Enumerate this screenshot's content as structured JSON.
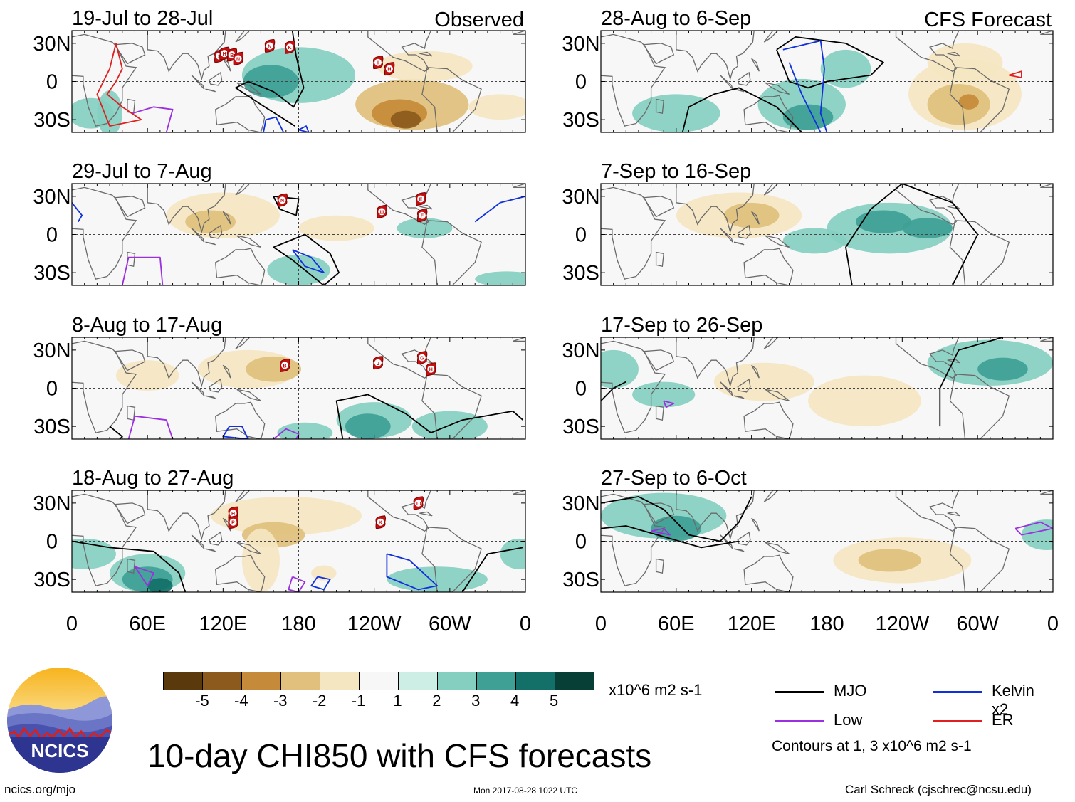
{
  "title": "10-day CHI850 with CFS forecasts",
  "footer": {
    "site": "ncics.org/mjo",
    "timestamp": "Mon 2017-08-28 1022 UTC",
    "credit": "Carl Schreck (cjschrec@ncsu.edu)"
  },
  "logo": {
    "text": "NCICS"
  },
  "column_headers": {
    "left": "Observed",
    "right": "CFS Forecast"
  },
  "lat_labels": [
    "30N",
    "0",
    "30S"
  ],
  "lon_labels": [
    "0",
    "60E",
    "120E",
    "180",
    "120W",
    "60W",
    "0"
  ],
  "panels_left": [
    {
      "date": "19-Jul to 28-Jul"
    },
    {
      "date": "29-Jul to 7-Aug"
    },
    {
      "date": "8-Aug to 17-Aug"
    },
    {
      "date": "18-Aug to 27-Aug"
    }
  ],
  "panels_right": [
    {
      "date": "28-Aug to 6-Sep"
    },
    {
      "date": "7-Sep to 16-Sep"
    },
    {
      "date": "17-Sep to 26-Sep"
    },
    {
      "date": "27-Sep to 6-Oct"
    }
  ],
  "storm_markers": [
    {
      "panel": "left-0",
      "lon": 117,
      "lat": 20,
      "label": "S"
    },
    {
      "panel": "left-0",
      "lon": 121,
      "lat": 22,
      "label": "H"
    },
    {
      "panel": "left-0",
      "lon": 127,
      "lat": 21,
      "label": "B"
    },
    {
      "panel": "left-0",
      "lon": 132,
      "lat": 18,
      "label": "N"
    },
    {
      "panel": "left-0",
      "lon": 157,
      "lat": 28,
      "label": "N"
    },
    {
      "panel": "left-0",
      "lon": 173,
      "lat": 27,
      "label": "K"
    },
    {
      "panel": "left-0",
      "lon": 243,
      "lat": 15,
      "label": "I"
    },
    {
      "panel": "left-0",
      "lon": 252,
      "lat": 10,
      "label": "H"
    },
    {
      "panel": "left-1",
      "lon": 167,
      "lat": 27,
      "label": "N"
    },
    {
      "panel": "left-1",
      "lon": 246,
      "lat": 18,
      "label": "11"
    },
    {
      "panel": "left-1",
      "lon": 277,
      "lat": 28,
      "label": "E"
    },
    {
      "panel": "left-1",
      "lon": 278,
      "lat": 15,
      "label": "F"
    },
    {
      "panel": "left-2",
      "lon": 169,
      "lat": 18,
      "label": "B"
    },
    {
      "panel": "left-2",
      "lon": 243,
      "lat": 20,
      "label": "J"
    },
    {
      "panel": "left-2",
      "lon": 278,
      "lat": 24,
      "label": "G"
    },
    {
      "panel": "left-2",
      "lon": 285,
      "lat": 15,
      "label": "H"
    },
    {
      "panel": "left-3",
      "lon": 128,
      "lat": 22,
      "label": "H"
    },
    {
      "panel": "left-3",
      "lon": 128,
      "lat": 15,
      "label": "P"
    },
    {
      "panel": "left-3",
      "lon": 245,
      "lat": 15,
      "label": "K"
    },
    {
      "panel": "left-3",
      "lon": 275,
      "lat": 30,
      "label": "10"
    }
  ],
  "colorbar": {
    "labels": [
      "-5",
      "-4",
      "-3",
      "-2",
      "-1",
      "1",
      "2",
      "3",
      "4",
      "5"
    ],
    "units": "x10^6 m2 s-1",
    "colors": [
      "#5a3a0c",
      "#8b5a1c",
      "#c58a3a",
      "#e0c07c",
      "#f5e6c2",
      "#f7f7f7",
      "#cdeee4",
      "#84cfc0",
      "#3fa095",
      "#137068",
      "#073e35"
    ]
  },
  "legend": [
    {
      "label": "MJO",
      "color": "#000000"
    },
    {
      "label": "Kelvin x2",
      "color": "#1030dd"
    },
    {
      "label": "Low",
      "color": "#9b30e0"
    },
    {
      "label": "ER",
      "color": "#e02020"
    }
  ],
  "contours_note": "Contours at 1, 3 x10^6 m2 s-1"
}
